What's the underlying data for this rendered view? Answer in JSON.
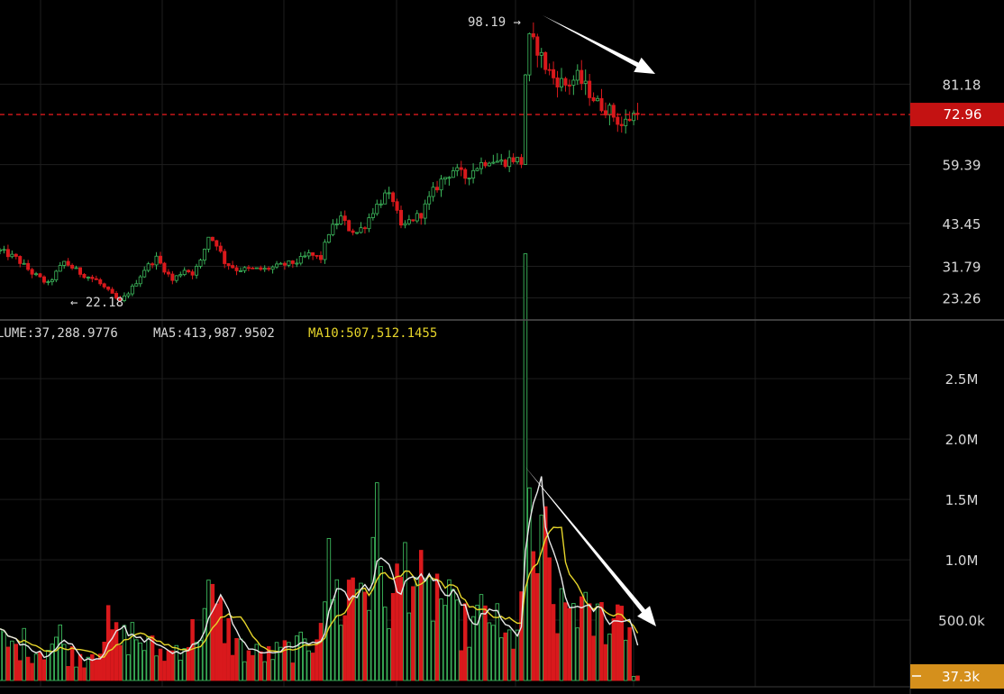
{
  "chart_data": [
    {
      "type": "candlestick",
      "panel": "price",
      "ylim": [
        18,
        104
      ],
      "y_ticks": [
        23.26,
        31.79,
        43.45,
        59.39,
        81.18
      ],
      "y_tick_labels": [
        "23.26",
        "31.79",
        "43.45",
        "59.39",
        "81.18"
      ],
      "current_price": 72.96,
      "current_price_label": "72.96",
      "high_annotation": {
        "label": "98.19 →",
        "value": 98.19
      },
      "low_annotation": {
        "label": "← 22.18",
        "value": 22.18
      },
      "close_path": [
        [
          0,
          36
        ],
        [
          4,
          34
        ],
        [
          8,
          30
        ],
        [
          12,
          27
        ],
        [
          16,
          33
        ],
        [
          20,
          30
        ],
        [
          24,
          28
        ],
        [
          27,
          25
        ],
        [
          29,
          23
        ],
        [
          30,
          22.18
        ],
        [
          33,
          26
        ],
        [
          36,
          31
        ],
        [
          39,
          34
        ],
        [
          41,
          31
        ],
        [
          43,
          28
        ],
        [
          46,
          31
        ],
        [
          48,
          30
        ],
        [
          50,
          33
        ],
        [
          52,
          40
        ],
        [
          54,
          38
        ],
        [
          56,
          33
        ],
        [
          59,
          31
        ],
        [
          63,
          31
        ],
        [
          66,
          31
        ],
        [
          70,
          32
        ],
        [
          74,
          33
        ],
        [
          77,
          35
        ],
        [
          80,
          34
        ],
        [
          82,
          41
        ],
        [
          85,
          45
        ],
        [
          87,
          42
        ],
        [
          89,
          41
        ],
        [
          91,
          43
        ],
        [
          93,
          47
        ],
        [
          96,
          51
        ],
        [
          98,
          50
        ],
        [
          100,
          42
        ],
        [
          102,
          44
        ],
        [
          105,
          46
        ],
        [
          108,
          52
        ],
        [
          110,
          55
        ],
        [
          113,
          58
        ],
        [
          116,
          56
        ],
        [
          119,
          59
        ],
        [
          122,
          61
        ],
        [
          125,
          60
        ],
        [
          128,
          61
        ],
        [
          130,
          60
        ],
        [
          131,
          84
        ],
        [
          132,
          93
        ],
        [
          134,
          91
        ],
        [
          136,
          86
        ],
        [
          138,
          83
        ],
        [
          141,
          81
        ],
        [
          144,
          83
        ],
        [
          147,
          79
        ],
        [
          149,
          76
        ],
        [
          152,
          74
        ],
        [
          155,
          70
        ],
        [
          158,
          72.96
        ]
      ],
      "price_close_up": true
    },
    {
      "type": "bar",
      "panel": "volume",
      "ylim": [
        0,
        2800000
      ],
      "y_ticks": [
        500000,
        1000000,
        1500000,
        2000000,
        2500000
      ],
      "y_tick_labels": [
        "500.0k",
        "1.0M",
        "1.5M",
        "2.0M",
        "2.5M"
      ],
      "current_volume_label": "37.3k",
      "legend": {
        "volume": "LUME:37,288.9776",
        "ma5": "MA5:413,987.9502",
        "ma10": "MA10:507,512.1455"
      },
      "volume_path": [
        [
          0,
          350000
        ],
        [
          3,
          280000
        ],
        [
          6,
          320000
        ],
        [
          9,
          260000
        ],
        [
          12,
          300000
        ],
        [
          15,
          380000
        ],
        [
          17,
          230000
        ],
        [
          21,
          200000
        ],
        [
          24,
          300000
        ],
        [
          27,
          450000
        ],
        [
          30,
          330000
        ],
        [
          33,
          400000
        ],
        [
          36,
          320000
        ],
        [
          39,
          260000
        ],
        [
          42,
          230000
        ],
        [
          45,
          320000
        ],
        [
          47,
          350000
        ],
        [
          50,
          500000
        ],
        [
          52,
          680000
        ],
        [
          55,
          550000
        ],
        [
          58,
          350000
        ],
        [
          61,
          250000
        ],
        [
          64,
          230000
        ],
        [
          67,
          220000
        ],
        [
          70,
          250000
        ],
        [
          73,
          280000
        ],
        [
          76,
          290000
        ],
        [
          78,
          350000
        ],
        [
          80,
          700000
        ],
        [
          82,
          900000
        ],
        [
          85,
          650000
        ],
        [
          87,
          780000
        ],
        [
          90,
          900000
        ],
        [
          92,
          780000
        ],
        [
          93,
          1620000
        ],
        [
          95,
          820000
        ],
        [
          98,
          650000
        ],
        [
          100,
          900000
        ],
        [
          102,
          1100000
        ],
        [
          104,
          900000
        ],
        [
          106,
          650000
        ],
        [
          109,
          800000
        ],
        [
          112,
          600000
        ],
        [
          114,
          500000
        ],
        [
          117,
          450000
        ],
        [
          120,
          550000
        ],
        [
          123,
          600000
        ],
        [
          125,
          330000
        ],
        [
          128,
          380000
        ],
        [
          130,
          650000
        ],
        [
          131,
          2600000
        ],
        [
          132,
          1500000
        ],
        [
          134,
          1000000
        ],
        [
          136,
          1100000
        ],
        [
          138,
          650000
        ],
        [
          140,
          550000
        ],
        [
          142,
          650000
        ],
        [
          144,
          700000
        ],
        [
          147,
          480000
        ],
        [
          150,
          550000
        ],
        [
          153,
          500000
        ],
        [
          155,
          700000
        ],
        [
          157,
          450000
        ],
        [
          158,
          37289
        ]
      ]
    }
  ],
  "colors": {
    "background": "#000000",
    "grid": "#1e1e1e",
    "up": "#3cb85c",
    "down": "#d9191c",
    "ma5": "#e8e8e8",
    "ma10": "#e6d52a",
    "price_badge": "#c41212",
    "volume_badge": "#d5901c",
    "text": "#d8d8d8",
    "arrow": "#ffffff"
  }
}
